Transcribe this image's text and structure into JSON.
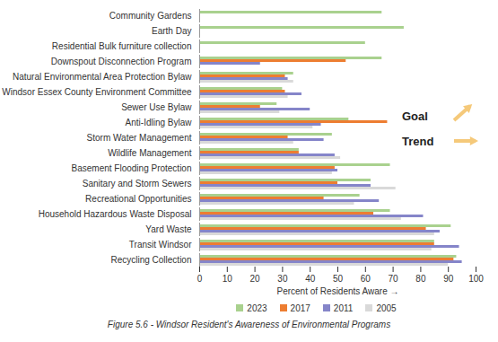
{
  "chart_data": {
    "type": "bar",
    "orientation": "horizontal",
    "title": "Figure 5.6 - Windsor Resident's Awareness of Environmental Programs",
    "x_label": "Percent of Residents Aware",
    "annotations": [
      "Goal",
      "Trend"
    ],
    "categories": [
      "Community Gardens",
      "Earth Day",
      "Residential Bulk furniture collection",
      "Downspout Disconnection Program",
      "Natural Environmental Area Protection Bylaw",
      "Windsor Essex County Environment Committee",
      "Sewer Use Bylaw",
      "Anti-Idling Bylaw",
      "Storm Water Management",
      "Wildlife Management",
      "Basement Flooding Protection",
      "Sanitary and Storm Sewers",
      "Recreational Opportunities",
      "Household Hazardous Waste Disposal",
      "Yard Waste",
      "Transit Windsor",
      "Recycling Collection"
    ],
    "series": [
      {
        "name": "2023",
        "color": "#a9d18e",
        "values": [
          66,
          74,
          60,
          66,
          34,
          30,
          28,
          54,
          48,
          36,
          69,
          62,
          58,
          69,
          91,
          85,
          93
        ]
      },
      {
        "name": "2017",
        "color": "#ed7d31",
        "values": [
          null,
          null,
          null,
          53,
          31,
          31,
          22,
          68,
          32,
          36,
          49,
          50,
          45,
          63,
          82,
          85,
          92
        ]
      },
      {
        "name": "2011",
        "color": "#8585c9",
        "values": [
          null,
          null,
          null,
          22,
          32,
          37,
          40,
          44,
          45,
          49,
          50,
          62,
          65,
          81,
          87,
          94,
          95
        ]
      },
      {
        "name": "2005",
        "color": "#d9d9d9",
        "values": [
          null,
          null,
          null,
          null,
          34,
          32,
          29,
          41,
          34,
          51,
          48,
          71,
          56,
          73,
          85,
          84,
          90
        ]
      }
    ],
    "xlim": [
      0,
      100
    ],
    "xticks": [
      0,
      10,
      20,
      30,
      40,
      50,
      60,
      70,
      80,
      90,
      100
    ],
    "grid": false,
    "legend": "bottom"
  }
}
